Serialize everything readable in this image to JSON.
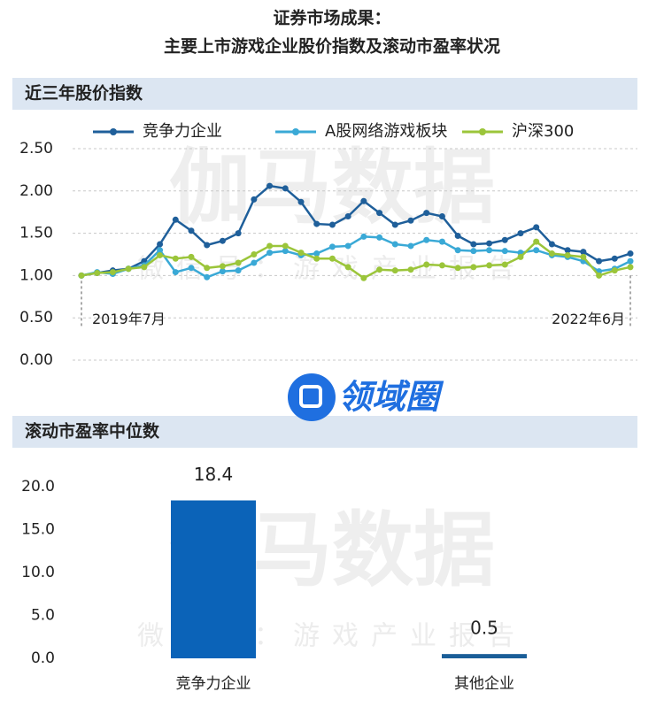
{
  "page_title": [
    "证券市场成果：",
    "主要上市游戏企业股价指数及滚动市盈率状况"
  ],
  "watermarks": {
    "brand": "伽马数据",
    "account": "微信号：游戏产业报告",
    "logo": "领域圈"
  },
  "chart_data": [
    {
      "type": "line",
      "title": "近三年股价指数",
      "categories": [
        "2019年7月",
        null,
        null,
        null,
        null,
        null,
        null,
        null,
        null,
        null,
        null,
        null,
        null,
        null,
        null,
        null,
        null,
        null,
        null,
        null,
        null,
        null,
        null,
        null,
        null,
        null,
        null,
        null,
        null,
        null,
        null,
        null,
        null,
        null,
        null,
        "2022年6月"
      ],
      "series": [
        {
          "name": "竞争力企业",
          "color": "#1f5f9a",
          "values": [
            1.0,
            1.03,
            1.06,
            1.08,
            1.17,
            1.37,
            1.66,
            1.53,
            1.36,
            1.41,
            1.5,
            1.9,
            2.06,
            2.03,
            1.87,
            1.61,
            1.6,
            1.7,
            1.88,
            1.74,
            1.6,
            1.65,
            1.74,
            1.7,
            1.47,
            1.37,
            1.38,
            1.42,
            1.5,
            1.57,
            1.37,
            1.3,
            1.28,
            1.17,
            1.2,
            1.26
          ]
        },
        {
          "name": "A股网络游戏板块",
          "color": "#3aa9d6",
          "values": [
            1.0,
            1.04,
            1.02,
            1.08,
            1.12,
            1.3,
            1.04,
            1.09,
            0.98,
            1.05,
            1.06,
            1.15,
            1.27,
            1.29,
            1.24,
            1.26,
            1.34,
            1.35,
            1.46,
            1.45,
            1.37,
            1.35,
            1.42,
            1.4,
            1.3,
            1.29,
            1.3,
            1.29,
            1.27,
            1.3,
            1.24,
            1.22,
            1.17,
            1.05,
            1.08,
            1.17
          ]
        },
        {
          "name": "沪深300",
          "color": "#9bc53a",
          "values": [
            1.0,
            1.03,
            1.04,
            1.08,
            1.1,
            1.24,
            1.2,
            1.22,
            1.09,
            1.11,
            1.15,
            1.25,
            1.35,
            1.35,
            1.27,
            1.2,
            1.2,
            1.1,
            0.97,
            1.07,
            1.06,
            1.07,
            1.13,
            1.12,
            1.09,
            1.1,
            1.12,
            1.13,
            1.22,
            1.4,
            1.26,
            1.24,
            1.22,
            1.0,
            1.06,
            1.1
          ]
        }
      ],
      "ylim": [
        0,
        2.5
      ],
      "yticks": [
        {
          "value": 0,
          "label": "0.00"
        },
        {
          "value": 0.5,
          "label": "0.50"
        },
        {
          "value": 1,
          "label": "1.00"
        },
        {
          "value": 1.5,
          "label": "1.50"
        },
        {
          "value": 2,
          "label": "2.00"
        },
        {
          "value": 2.5,
          "label": "2.50"
        }
      ],
      "grid": true,
      "legend": "top"
    },
    {
      "type": "bar",
      "title": "滚动市盈率中位数",
      "categories": [
        "竞争力企业",
        "其他企业"
      ],
      "values": [
        18.4,
        0.5
      ],
      "colors": [
        "#0b63b8",
        "#1a5e98"
      ],
      "ylim": [
        0,
        20
      ],
      "yticks": [
        {
          "value": 0,
          "label": "0.0"
        },
        {
          "value": 5,
          "label": "5.0"
        },
        {
          "value": 10,
          "label": "10.0"
        },
        {
          "value": 15,
          "label": "15.0"
        },
        {
          "value": 20,
          "label": "20.0"
        }
      ],
      "grid": false
    }
  ]
}
